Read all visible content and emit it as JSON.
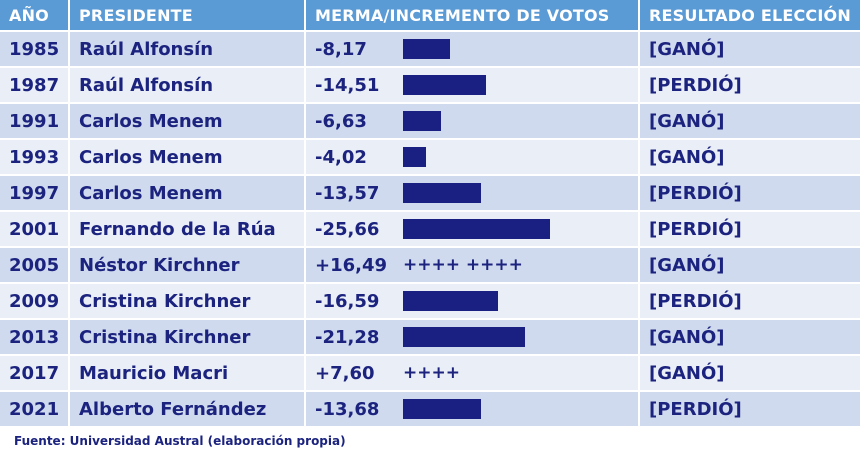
{
  "chart_data": {
    "type": "table",
    "columns": [
      "AÑO",
      "PRESIDENTE",
      "MERMA/INCREMENTO DE VOTOS",
      "RESULTADO ELECCIÓN"
    ],
    "rows": [
      {
        "year": "1985",
        "president": "Raúl Alfonsín",
        "value": -8.17,
        "label": "-8,17",
        "plus": "",
        "result": "[GANÓ]"
      },
      {
        "year": "1987",
        "president": "Raúl Alfonsín",
        "value": -14.51,
        "label": "-14,51",
        "plus": "",
        "result": "[PERDIÓ]"
      },
      {
        "year": "1991",
        "president": "Carlos Menem",
        "value": -6.63,
        "label": "-6,63",
        "plus": "",
        "result": "[GANÓ]"
      },
      {
        "year": "1993",
        "president": "Carlos Menem",
        "value": -4.02,
        "label": "-4,02",
        "plus": "",
        "result": "[GANÓ]"
      },
      {
        "year": "1997",
        "president": "Carlos Menem",
        "value": -13.57,
        "label": "-13,57",
        "plus": "",
        "result": "[PERDIÓ]"
      },
      {
        "year": "2001",
        "president": "Fernando de la Rúa",
        "value": -25.66,
        "label": "-25,66",
        "plus": "",
        "result": "[PERDIÓ]"
      },
      {
        "year": "2005",
        "president": "Néstor Kirchner",
        "value": 16.49,
        "label": "+16,49",
        "plus": "++++ ++++",
        "result": "[GANÓ]"
      },
      {
        "year": "2009",
        "president": "Cristina Kirchner",
        "value": -16.59,
        "label": "-16,59",
        "plus": "",
        "result": "[PERDIÓ]"
      },
      {
        "year": "2013",
        "president": "Cristina Kirchner",
        "value": -21.28,
        "label": "-21,28",
        "plus": "",
        "result": "[GANÓ]"
      },
      {
        "year": "2017",
        "president": "Mauricio Macri",
        "value": 7.6,
        "label": "+7,60",
        "plus": "++++",
        "result": "[GANÓ]"
      },
      {
        "year": "2021",
        "president": "Alberto Fernández",
        "value": -13.68,
        "label": "-13,68",
        "plus": "",
        "result": "[PERDIÓ]"
      }
    ],
    "colors": {
      "header": "#5b9bd5",
      "row_odd": "#cfdaee",
      "row_even": "#e9eef7",
      "text": "#1b237e",
      "bar": "#1a1f82"
    }
  },
  "footer": {
    "source": "Fuente: Universidad Austral (elaboración propia)"
  }
}
